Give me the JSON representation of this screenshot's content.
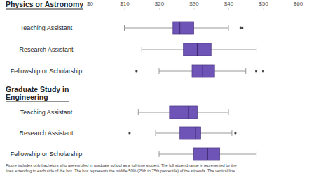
{
  "chart_data": {
    "type": "box",
    "orientation": "horizontal",
    "color": "#6f54b8",
    "grid": false,
    "xlim": [
      0,
      60
    ],
    "xticks": [
      {
        "value": 0,
        "label": "$0"
      },
      {
        "value": 10,
        "label": "$10"
      },
      {
        "value": 20,
        "label": "$20"
      },
      {
        "value": 30,
        "label": "$30"
      },
      {
        "value": 40,
        "label": "$40"
      },
      {
        "value": 50,
        "label": "$50"
      },
      {
        "value": 60,
        "label": "$60"
      }
    ],
    "series": [
      {
        "name": "Physics or Astronomy",
        "categories": [
          "Teaching Assistant",
          "Research Assistant",
          "Fellowship or Scholarship"
        ],
        "min": [
          10,
          15,
          20
        ],
        "q1": [
          24,
          27,
          29.5
        ],
        "median": [
          26,
          31,
          32.5
        ],
        "q3": [
          30,
          35,
          36
        ],
        "max": [
          40,
          48,
          45
        ],
        "outliers": [
          [
            43.5,
            44
          ],
          [],
          [
            13.5,
            48,
            50
          ]
        ]
      },
      {
        "name": "Graduate Study in Engineering",
        "categories": [
          "Teaching Assistant",
          "Research Assistant",
          "Fellowship or Scholarship"
        ],
        "min": [
          14,
          19,
          20
        ],
        "q1": [
          23,
          26,
          30
        ],
        "median": [
          28.5,
          30.5,
          34
        ],
        "q3": [
          31,
          32,
          37.5
        ],
        "max": [
          40,
          41,
          48
        ],
        "outliers": [
          [],
          [
            11.5,
            42
          ],
          []
        ]
      }
    ],
    "caption": [
      "Figure includes only bachelors who are enrolled in graduate school as a full-time student. The full stipend range is represented by the",
      "lines extending to each side of the box. The box represents the middle 50% (25th to 75th percentile) of the stipends. The vertical line"
    ]
  }
}
